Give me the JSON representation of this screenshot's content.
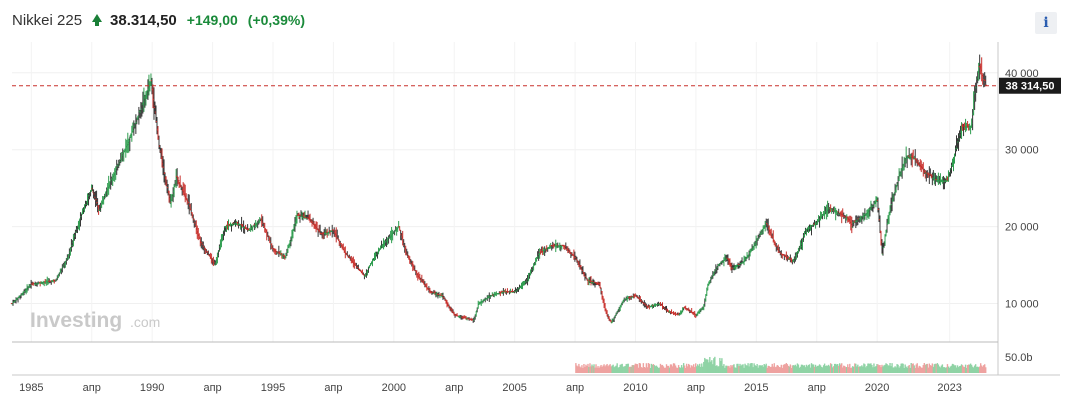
{
  "header": {
    "name": "Nikkei 225",
    "price": "38.314,50",
    "change": "+149,00",
    "change_pct": "(+0,39%)",
    "up_color": "#1a8a3a"
  },
  "info_button": {
    "label": "i"
  },
  "watermark": {
    "brand": "Investing",
    "suffix": ".com"
  },
  "chart_data": {
    "type": "line",
    "style": "ohlc-bars",
    "x_ticks": [
      {
        "t": 1985.0,
        "label": "1985"
      },
      {
        "t": 1987.5,
        "label": "апр"
      },
      {
        "t": 1990.0,
        "label": "1990"
      },
      {
        "t": 1992.5,
        "label": "апр"
      },
      {
        "t": 1995.0,
        "label": "1995"
      },
      {
        "t": 1997.5,
        "label": "апр"
      },
      {
        "t": 2000.0,
        "label": "2000"
      },
      {
        "t": 2002.5,
        "label": "апр"
      },
      {
        "t": 2005.0,
        "label": "2005"
      },
      {
        "t": 2007.5,
        "label": "апр"
      },
      {
        "t": 2010.0,
        "label": "2010"
      },
      {
        "t": 2012.5,
        "label": "апр"
      },
      {
        "t": 2015.0,
        "label": "2015"
      },
      {
        "t": 2017.5,
        "label": "апр"
      },
      {
        "t": 2020.0,
        "label": "2020"
      },
      {
        "t": 2023.0,
        "label": "2023"
      }
    ],
    "y_ticks": [
      {
        "v": 10000,
        "label": "10 000"
      },
      {
        "v": 20000,
        "label": "20 000"
      },
      {
        "v": 30000,
        "label": "30 000"
      },
      {
        "v": 40000,
        "label": "40 000"
      }
    ],
    "xlim": [
      1984.2,
      2025.0
    ],
    "ylim": [
      5000,
      44000
    ],
    "volume_label": "50.0b",
    "last_value": 38314.5,
    "last_label": "38 314,50",
    "colors": {
      "up": "#2e9d4f",
      "down": "#c8302c",
      "line": "#222222",
      "last": "#c8302c"
    },
    "series": [
      {
        "x": [
          1984.2,
          1985.0,
          1986.0,
          1986.5,
          1987.0,
          1987.5,
          1987.8,
          1988.0,
          1989.0,
          1989.95,
          1990.3,
          1990.75,
          1991.0,
          1991.5,
          1992.0,
          1992.6,
          1993.0,
          1993.5,
          1994.0,
          1994.5,
          1995.0,
          1995.5,
          1996.0,
          1996.5,
          1997.0,
          1997.5,
          1998.0,
          1998.8,
          1999.0,
          1999.5,
          2000.2,
          2000.5,
          2001.0,
          2001.5,
          2002.0,
          2002.5,
          2003.3,
          2003.5,
          2004.0,
          2004.5,
          2005.0,
          2005.5,
          2006.0,
          2006.5,
          2007.0,
          2007.5,
          2008.0,
          2008.5,
          2008.8,
          2009.0,
          2009.5,
          2010.0,
          2010.5,
          2011.0,
          2011.3,
          2011.8,
          2012.0,
          2012.5,
          2012.8,
          2013.0,
          2013.4,
          2013.8,
          2014.0,
          2014.5,
          2014.9,
          2015.4,
          2015.8,
          2016.0,
          2016.5,
          2016.9,
          2017.0,
          2017.5,
          2018.0,
          2018.8,
          2018.95,
          2019.0,
          2019.5,
          2020.0,
          2020.2,
          2020.5,
          2020.9,
          2021.0,
          2021.2,
          2021.5,
          2022.0,
          2022.5,
          2022.9,
          2023.0,
          2023.5,
          2023.9,
          2024.0,
          2024.2,
          2024.5
        ],
        "values": [
          10000,
          12500,
          13000,
          16000,
          21000,
          25000,
          22000,
          24000,
          31000,
          38900,
          30000,
          23000,
          26500,
          23000,
          18000,
          15000,
          20000,
          20500,
          19500,
          21000,
          17000,
          16000,
          21500,
          21000,
          19000,
          19500,
          16500,
          13500,
          15000,
          17500,
          20000,
          16500,
          13500,
          11500,
          11000,
          8500,
          7800,
          10000,
          11000,
          11500,
          11500,
          13000,
          16500,
          17500,
          17500,
          16000,
          13000,
          12500,
          8500,
          7500,
          10500,
          11000,
          9500,
          10000,
          9000,
          8500,
          9500,
          8500,
          9500,
          12500,
          15000,
          16000,
          14500,
          15500,
          17500,
          20500,
          17500,
          16500,
          15500,
          18000,
          19500,
          20500,
          22500,
          21000,
          20000,
          20500,
          21500,
          23500,
          16500,
          22000,
          26500,
          27500,
          29000,
          29000,
          27000,
          26000,
          26000,
          27000,
          33000,
          33000,
          36500,
          41000,
          38314.5
        ]
      }
    ]
  }
}
